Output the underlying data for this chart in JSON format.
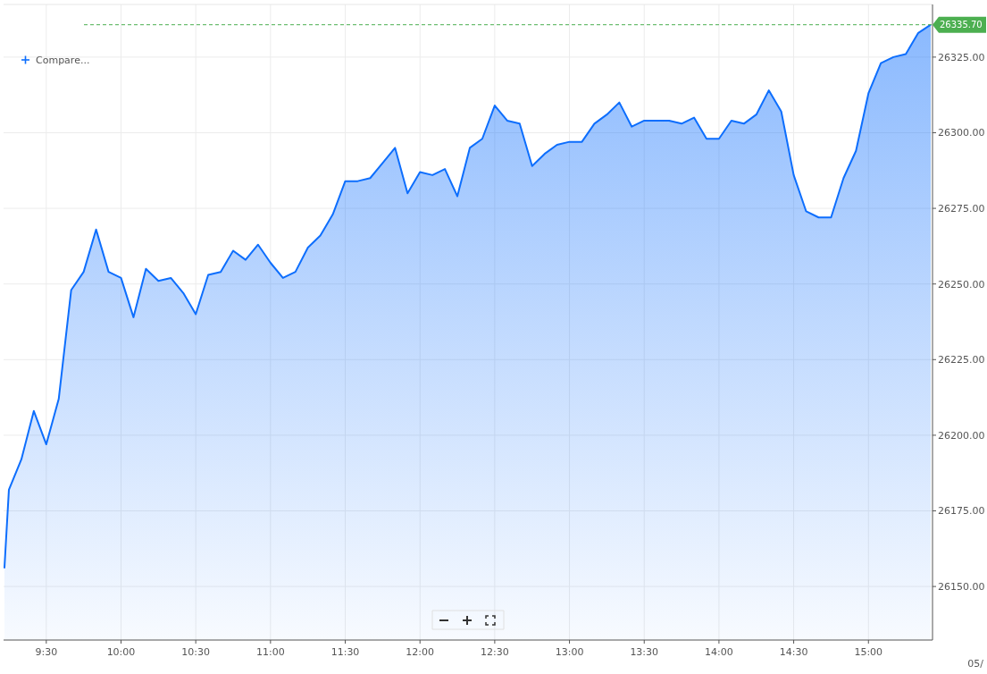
{
  "chart_data": {
    "type": "area",
    "color": "#0d6efd",
    "grid": true,
    "x": [
      9.22,
      9.25,
      9.3333,
      9.4167,
      9.5,
      9.5833,
      9.6667,
      9.75,
      9.8333,
      9.9167,
      10,
      10.0833,
      10.1667,
      10.25,
      10.3333,
      10.4167,
      10.5,
      10.5833,
      10.6667,
      10.75,
      10.8333,
      10.9167,
      11,
      11.0833,
      11.1667,
      11.25,
      11.3333,
      11.4167,
      11.5,
      11.5833,
      11.6667,
      11.75,
      11.8333,
      11.9167,
      12,
      12.0833,
      12.1667,
      12.25,
      12.3333,
      12.4167,
      12.5,
      12.5833,
      12.6667,
      12.75,
      12.8333,
      12.9167,
      13,
      13.0833,
      13.1667,
      13.25,
      13.3333,
      13.4167,
      13.5,
      13.5833,
      13.6667,
      13.75,
      13.8333,
      13.9167,
      14,
      14.0833,
      14.1667,
      14.25,
      14.3333,
      14.4167,
      14.5,
      14.5833,
      14.6667,
      14.75,
      14.8333,
      14.9167,
      15,
      15.0833,
      15.1667,
      15.25,
      15.3333,
      15.4167
    ],
    "values": [
      26156,
      26182,
      26192,
      26208,
      26197,
      26212,
      26248,
      26254,
      26268,
      26254,
      26252,
      26239,
      26255,
      26251,
      26252,
      26247,
      26240,
      26253,
      26254,
      26261,
      26258,
      26263,
      26257,
      26252,
      26254,
      26262,
      26266,
      26273,
      26284,
      26284,
      26285,
      26290,
      26295,
      26280,
      26287,
      26286,
      26288,
      26279,
      26295,
      26298,
      26309,
      26304,
      26303,
      26289,
      26293,
      26296,
      26297,
      26297,
      26303,
      26306,
      26310,
      26302,
      26304,
      26304,
      26304,
      26303,
      26305,
      26298,
      26298,
      26304,
      26303,
      26306,
      26314,
      26307,
      26286,
      26274,
      26272,
      26272,
      26285,
      26294,
      26313,
      26323,
      26325,
      26326,
      26333,
      26335.7
    ],
    "xlim": [
      9.2143,
      15.4286
    ],
    "xticks": [
      {
        "value": 9.5,
        "label": "9:30"
      },
      {
        "value": 10,
        "label": "10:00"
      },
      {
        "value": 10.5,
        "label": "10:30"
      },
      {
        "value": 11,
        "label": "11:00"
      },
      {
        "value": 11.5,
        "label": "11:30"
      },
      {
        "value": 12,
        "label": "12:00"
      },
      {
        "value": 12.5,
        "label": "12:30"
      },
      {
        "value": 13,
        "label": "13:00"
      },
      {
        "value": 13.5,
        "label": "13:30"
      },
      {
        "value": 14,
        "label": "14:00"
      },
      {
        "value": 14.5,
        "label": "14:30"
      },
      {
        "value": 15,
        "label": "15:00"
      }
    ],
    "ylim": [
      26132.3,
      26342.4
    ],
    "yticks": [
      {
        "value": 26150,
        "label": "26150.00"
      },
      {
        "value": 26175,
        "label": "26175.00"
      },
      {
        "value": 26200,
        "label": "26200.00"
      },
      {
        "value": 26225,
        "label": "26225.00"
      },
      {
        "value": 26250,
        "label": "26250.00"
      },
      {
        "value": 26275,
        "label": "26275.00"
      },
      {
        "value": 26300,
        "label": "26300.00"
      },
      {
        "value": 26325,
        "label": "26325.00"
      }
    ],
    "ref_lines": [
      {
        "axis": "y",
        "value": 26335.7,
        "label": "26335.70",
        "color": "#4caf50",
        "line_style": "dashed"
      }
    ],
    "annotations": [
      "Compare...",
      "05/"
    ]
  }
}
